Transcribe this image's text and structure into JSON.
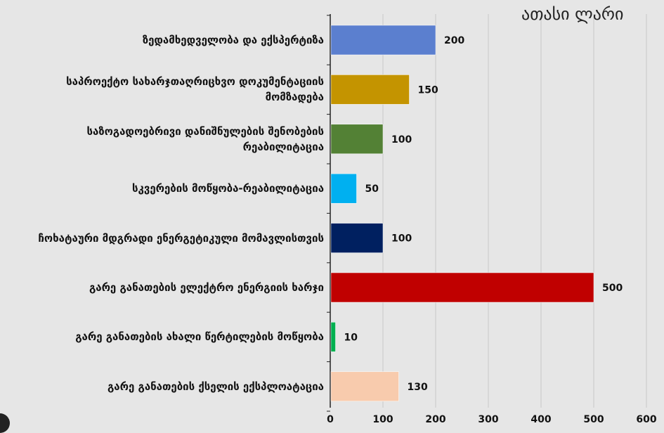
{
  "chart_data": {
    "type": "bar",
    "orientation": "horizontal",
    "unit_label": "ათასი ლარი",
    "categories": [
      "ზედამხედველობა და ექსპერტიზა",
      "საპროექტო სახარჯთაღრიცხვო დოკუმენტაციის მომზადება",
      "საზოგადოებრივი დანიშნულების შენობების რეაბილიტაცია",
      "სკვერების მოწყობა-რეაბილიტაცია",
      "ჩოხატაური მდგრადი ენერგეტიკული მომავლისთვის",
      "გარე განათების ელექტრო ენერგიის ხარჯი",
      "გარე განათების ახალი წერტილების მოწყობა",
      "გარე განათების ქსელის ექსპლოატაცია"
    ],
    "values": [
      200,
      150,
      100,
      50,
      100,
      500,
      10,
      130
    ],
    "data_labels": [
      "200",
      "150",
      "100",
      "50",
      "100",
      "500",
      "10",
      "130"
    ],
    "colors": [
      "#5b7fcf",
      "#c49400",
      "#538135",
      "#00b0f0",
      "#002060",
      "#c00000",
      "#00b050",
      "#f8cbad"
    ],
    "xlim": [
      0,
      600
    ],
    "x_ticks": [
      "0",
      "100",
      "200",
      "300",
      "400",
      "500",
      "600"
    ],
    "grid": true,
    "title": "",
    "xlabel": "",
    "ylabel": ""
  }
}
